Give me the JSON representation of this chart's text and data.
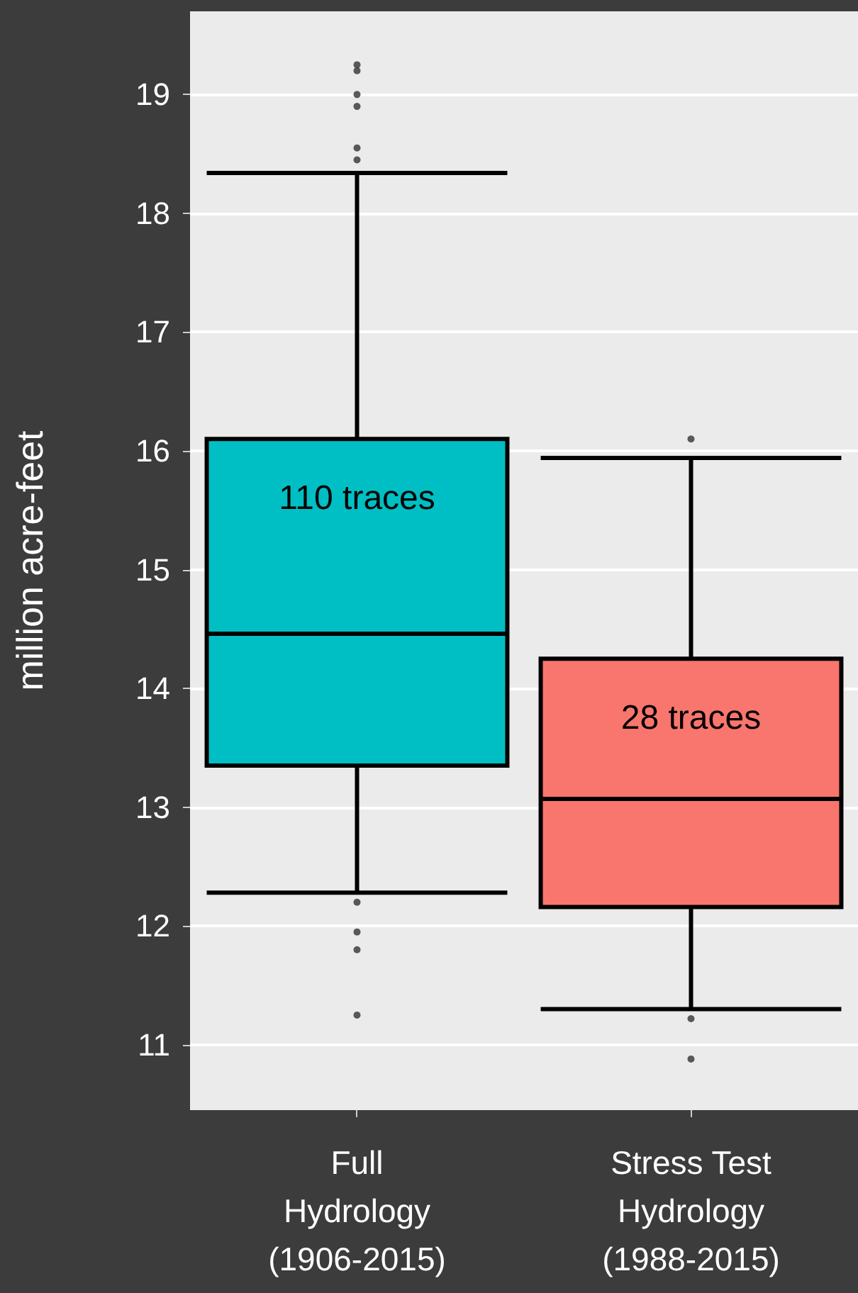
{
  "chart_data": {
    "type": "box",
    "ylabel": "million acre-feet",
    "categories": [
      "Full\nHydrology\n(1906-2015)",
      "Stress Test\nHydrology\n(1988-2015)"
    ],
    "colors": [
      "#00bfc4",
      "#f8766d"
    ],
    "boxes": [
      {
        "low": 12.28,
        "q1": 13.35,
        "median": 14.46,
        "q3": 16.1,
        "high": 18.34,
        "outliers": [
          19.25,
          19.2,
          19.0,
          18.9,
          18.55,
          18.45,
          12.2,
          11.95,
          11.8,
          11.25
        ]
      },
      {
        "low": 11.3,
        "q1": 12.16,
        "median": 13.07,
        "q3": 14.25,
        "high": 15.94,
        "outliers": [
          16.1,
          11.22,
          10.88
        ]
      }
    ],
    "ylim": [
      10.45,
      19.7
    ],
    "yticks": [
      11,
      12,
      13,
      14,
      15,
      16,
      17,
      18,
      19
    ],
    "grid": "y",
    "annotations": [
      "110 traces",
      "28 traces"
    ]
  }
}
